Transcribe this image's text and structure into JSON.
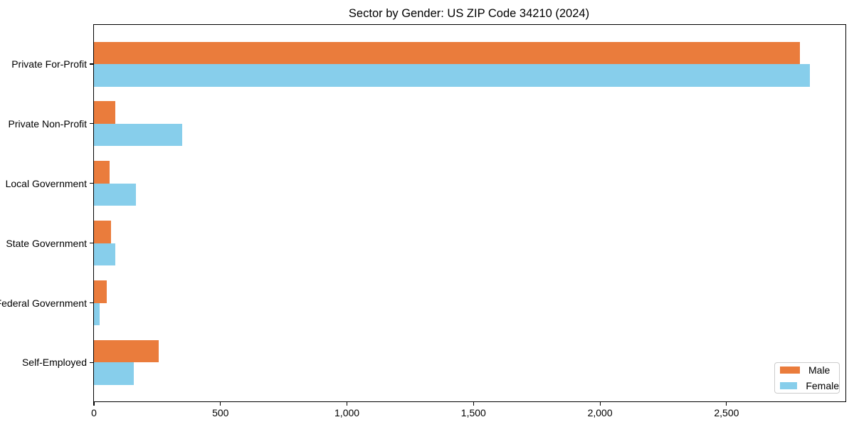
{
  "chart_data": {
    "type": "bar",
    "orientation": "horizontal",
    "title": "Sector by Gender: US ZIP Code 34210 (2024)",
    "xlabel": "",
    "ylabel": "",
    "categories": [
      "Private For-Profit",
      "Private Non-Profit",
      "Local Government",
      "State Government",
      "Federal Government",
      "Self-Employed"
    ],
    "series": [
      {
        "name": "Male",
        "color": "#ea7c3c",
        "values": [
          2790,
          83,
          62,
          67,
          52,
          255
        ]
      },
      {
        "name": "Female",
        "color": "#87ceeb",
        "values": [
          2828,
          350,
          165,
          84,
          22,
          157
        ]
      }
    ],
    "xlim": [
      0,
      2970
    ],
    "x_ticks": [
      0,
      500,
      1000,
      1500,
      2000,
      2500
    ],
    "x_tick_labels": [
      "0",
      "500",
      "1,000",
      "1,500",
      "2,000",
      "2,500"
    ],
    "grid": false,
    "legend": {
      "position": "lower right",
      "entries": [
        "Male",
        "Female"
      ]
    }
  },
  "colors": {
    "male": "#ea7c3c",
    "female": "#87ceeb",
    "axis": "#000000",
    "legend_border": "#cccccc",
    "background": "#ffffff"
  }
}
